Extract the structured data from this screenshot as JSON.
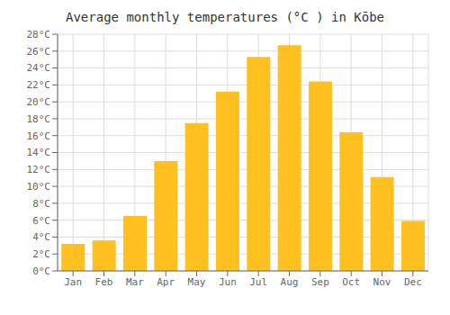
{
  "chart_data": {
    "type": "bar",
    "title": "Average monthly temperatures (°C ) in Kōbe",
    "categories": [
      "Jan",
      "Feb",
      "Mar",
      "Apr",
      "May",
      "Jun",
      "Jul",
      "Aug",
      "Sep",
      "Oct",
      "Nov",
      "Dec"
    ],
    "values": [
      3.2,
      3.6,
      6.5,
      13.0,
      17.5,
      21.2,
      25.3,
      26.7,
      22.4,
      16.4,
      11.1,
      5.9
    ],
    "color": "#FFC020",
    "ylim": [
      0,
      28
    ],
    "yticks": [
      {
        "value": 0,
        "label": "0°C"
      },
      {
        "value": 2,
        "label": "2°C"
      },
      {
        "value": 4,
        "label": "4°C"
      },
      {
        "value": 6,
        "label": "6°C"
      },
      {
        "value": 8,
        "label": "8°C"
      },
      {
        "value": 10,
        "label": "10°C"
      },
      {
        "value": 12,
        "label": "12°C"
      },
      {
        "value": 14,
        "label": "14°C"
      },
      {
        "value": 16,
        "label": "16°C"
      },
      {
        "value": 18,
        "label": "18°C"
      },
      {
        "value": 20,
        "label": "20°C"
      },
      {
        "value": 22,
        "label": "22°C"
      },
      {
        "value": 24,
        "label": "24°C"
      },
      {
        "value": 26,
        "label": "26°C"
      },
      {
        "value": 28,
        "label": "28°C"
      }
    ],
    "grid": true
  }
}
